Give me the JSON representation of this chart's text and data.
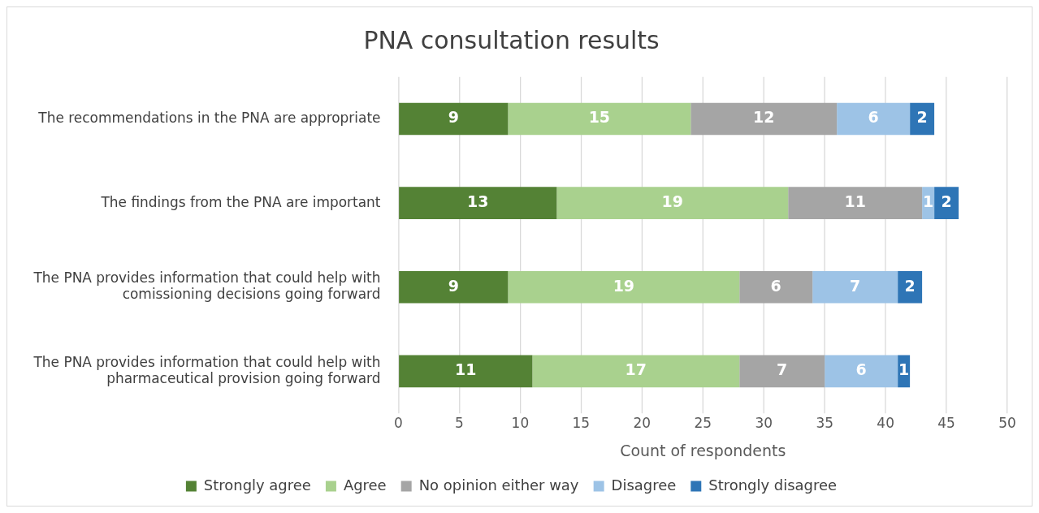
{
  "chart_data": {
    "type": "bar",
    "orientation": "horizontal",
    "stacked": true,
    "title": "PNA consultation results",
    "xlabel": "Count of respondents",
    "categories": [
      "The recommendations in the PNA are appropriate",
      "The findings from the PNA are important",
      "The PNA provides information that could help with comissioning decisions going forward",
      "The PNA provides information that could help with pharmaceutical provision going forward"
    ],
    "series": [
      {
        "name": "Strongly agree",
        "color": "#548235",
        "values": [
          9,
          13,
          9,
          11
        ]
      },
      {
        "name": "Agree",
        "color": "#a9d18e",
        "values": [
          15,
          19,
          19,
          17
        ]
      },
      {
        "name": "No opinion either way",
        "color": "#a5a5a5",
        "values": [
          12,
          11,
          6,
          7
        ]
      },
      {
        "name": "Disagree",
        "color": "#9dc3e6",
        "values": [
          6,
          1,
          7,
          6
        ]
      },
      {
        "name": "Strongly disagree",
        "color": "#2e75b6",
        "values": [
          2,
          2,
          2,
          1
        ]
      }
    ],
    "xlim": [
      0,
      50
    ],
    "xticks": [
      0,
      5,
      10,
      15,
      20,
      25,
      30,
      35,
      40,
      45,
      50
    ],
    "grid": "x",
    "legend": "bottom",
    "data_labels": true
  }
}
